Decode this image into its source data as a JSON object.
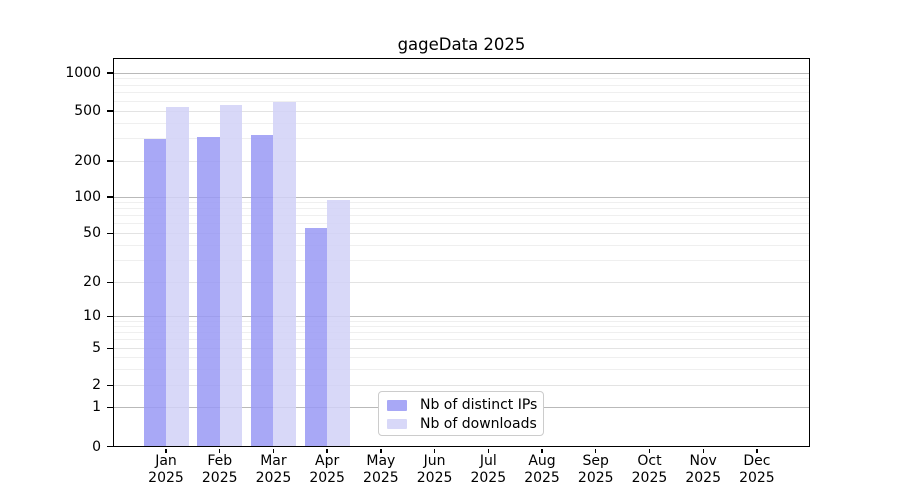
{
  "title": "gageData 2025",
  "legend": {
    "items": [
      {
        "label": "Nb of distinct IPs",
        "color": "#a8a8f6"
      },
      {
        "label": "Nb of downloads",
        "color": "#d8d8f8"
      }
    ],
    "position": "inside-bottom-center"
  },
  "chart_data": {
    "type": "bar",
    "title": "gageData 2025",
    "categories": [
      {
        "month": "Jan",
        "year": "2025"
      },
      {
        "month": "Feb",
        "year": "2025"
      },
      {
        "month": "Mar",
        "year": "2025"
      },
      {
        "month": "Apr",
        "year": "2025"
      },
      {
        "month": "May",
        "year": "2025"
      },
      {
        "month": "Jun",
        "year": "2025"
      },
      {
        "month": "Jul",
        "year": "2025"
      },
      {
        "month": "Aug",
        "year": "2025"
      },
      {
        "month": "Sep",
        "year": "2025"
      },
      {
        "month": "Oct",
        "year": "2025"
      },
      {
        "month": "Nov",
        "year": "2025"
      },
      {
        "month": "Dec",
        "year": "2025"
      }
    ],
    "series": [
      {
        "name": "Nb of distinct IPs",
        "color": "#a8a8f6",
        "fill": "rgba(153,153,244,0.85)",
        "values": [
          298,
          312,
          325,
          55,
          null,
          null,
          null,
          null,
          null,
          null,
          null,
          null
        ]
      },
      {
        "name": "Nb of downloads",
        "color": "#d8d8f8",
        "fill": "rgba(209,209,247,0.85)",
        "values": [
          540,
          555,
          590,
          95,
          null,
          null,
          null,
          null,
          null,
          null,
          null,
          null
        ]
      }
    ],
    "y_ticks": [
      0,
      1,
      2,
      5,
      10,
      20,
      50,
      100,
      200,
      500,
      1000
    ],
    "xlabel": "",
    "ylabel": "",
    "scale": "log-like (0,1,2,5,10,20,50,100,200,500,1000)",
    "grid": "horizontal major+minor",
    "legend_position": "inside-bottom-center",
    "ylim": [
      0,
      1300
    ]
  }
}
